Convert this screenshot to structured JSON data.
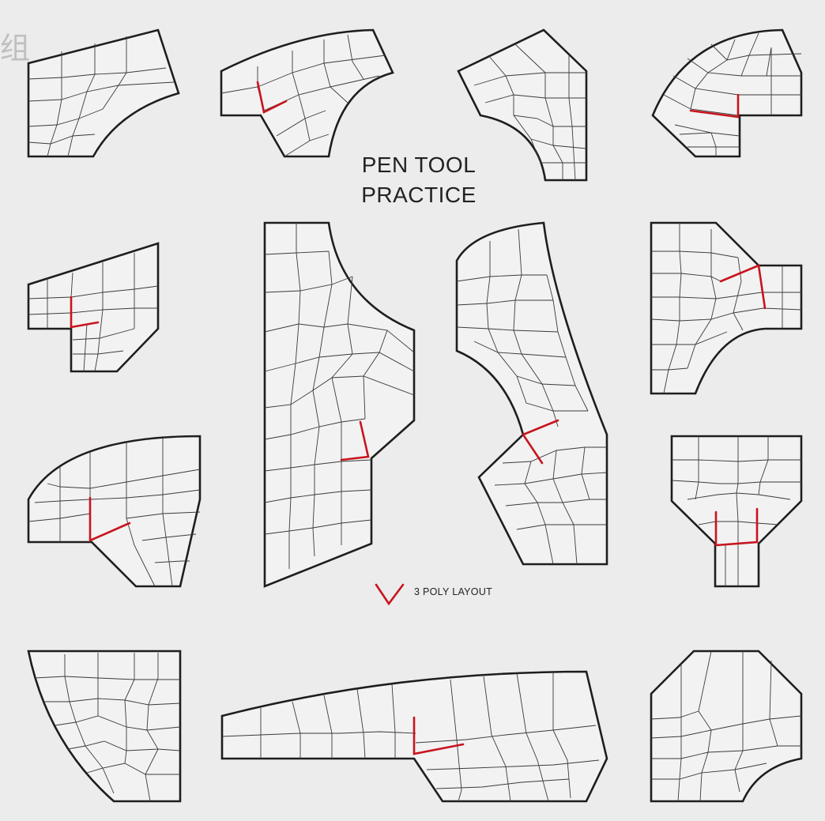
{
  "title": {
    "line1": "PEN TOOL",
    "line2": "PRACTICE"
  },
  "legend": {
    "label": "3 POLY LAYOUT",
    "icon": "red-v-mark"
  },
  "watermark": {
    "text": "组"
  },
  "colors": {
    "background": "#ececec",
    "outline": "#1e1e1e",
    "mesh": "#3a3a3a",
    "highlight": "#c8141e"
  }
}
